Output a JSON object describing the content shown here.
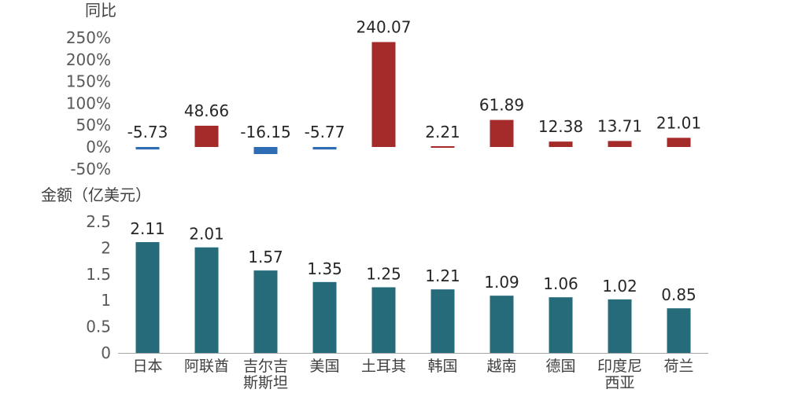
{
  "chart_data": [
    {
      "type": "bar",
      "ylabel": "同比",
      "ylim": [
        -50,
        250
      ],
      "yticks": [
        "250%",
        "200%",
        "150%",
        "100%",
        "50%",
        "0%",
        "-50%"
      ],
      "ytick_values": [
        250,
        200,
        150,
        100,
        50,
        0,
        -50
      ],
      "categories": [
        "日本",
        "阿联酋",
        "吉尔吉斯斯坦",
        "美国",
        "土耳其",
        "韩国",
        "越南",
        "德国",
        "印度尼西亚",
        "荷兰"
      ],
      "values": [
        -5.73,
        48.66,
        -16.15,
        -5.77,
        240.07,
        2.21,
        61.89,
        12.38,
        13.71,
        21.01
      ],
      "data_labels": [
        "-5.73",
        "48.66",
        "-16.15",
        "-5.77",
        "240.07",
        "2.21",
        "61.89",
        "12.38",
        "13.71",
        "21.01"
      ],
      "colors": {
        "positive": "#A52A2A",
        "negative": "#2E6DB4"
      }
    },
    {
      "type": "bar",
      "ylabel": "金额（亿美元）",
      "ylim": [
        0,
        2.5
      ],
      "yticks": [
        "2.5",
        "2",
        "1.5",
        "1",
        "0.5",
        "0"
      ],
      "ytick_values": [
        2.5,
        2,
        1.5,
        1,
        0.5,
        0
      ],
      "categories": [
        "日本",
        "阿联酋",
        "吉尔吉斯斯坦",
        "美国",
        "土耳其",
        "韩国",
        "越南",
        "德国",
        "印度尼西亚",
        "荷兰"
      ],
      "category_lines": [
        [
          "日本"
        ],
        [
          "阿联酋"
        ],
        [
          "吉尔吉",
          "斯斯坦"
        ],
        [
          "美国"
        ],
        [
          "土耳其"
        ],
        [
          "韩国"
        ],
        [
          "越南"
        ],
        [
          "德国"
        ],
        [
          "印度尼",
          "西亚"
        ],
        [
          "荷兰"
        ]
      ],
      "values": [
        2.11,
        2.01,
        1.57,
        1.35,
        1.25,
        1.21,
        1.09,
        1.06,
        1.02,
        0.85
      ],
      "data_labels": [
        "2.11",
        "2.01",
        "1.57",
        "1.35",
        "1.25",
        "1.21",
        "1.09",
        "1.06",
        "1.02",
        "0.85"
      ],
      "colors": {
        "bar": "#266B7A",
        "axis": "#A6A6A6"
      }
    }
  ]
}
